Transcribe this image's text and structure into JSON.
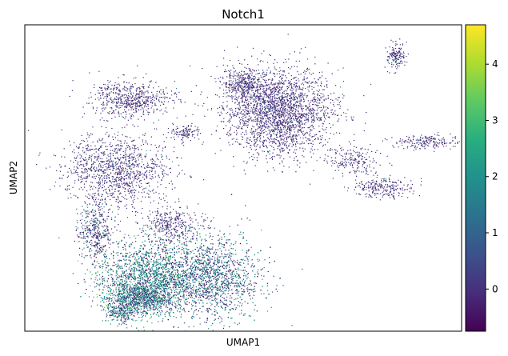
{
  "chart_data": {
    "type": "scatter",
    "title": "Notch1",
    "xlabel": "UMAP1",
    "ylabel": "UMAP2",
    "x_ticks_shown": false,
    "y_ticks_shown": false,
    "grid": false,
    "legend": "none",
    "colormap": "viridis",
    "colorbar": {
      "placement": "right",
      "range": [
        -0.75,
        4.7
      ],
      "ticks": [
        0,
        1,
        2,
        3,
        4
      ],
      "tick_labels": [
        "0",
        "1",
        "2",
        "3",
        "4"
      ]
    },
    "point_color_low": "#440154",
    "point_color_high": "#fde725",
    "clusters": [
      {
        "cx": 0.58,
        "cy": 0.72,
        "sx": 0.06,
        "sy": 0.07,
        "n": 2400,
        "value": 0.0
      },
      {
        "cx": 0.5,
        "cy": 0.81,
        "sx": 0.025,
        "sy": 0.03,
        "n": 350,
        "value": 0.0
      },
      {
        "cx": 0.24,
        "cy": 0.76,
        "sx": 0.045,
        "sy": 0.03,
        "n": 600,
        "value": 0.0
      },
      {
        "cx": 0.85,
        "cy": 0.9,
        "sx": 0.012,
        "sy": 0.02,
        "n": 150,
        "value": 0.0
      },
      {
        "cx": 0.21,
        "cy": 0.53,
        "sx": 0.06,
        "sy": 0.06,
        "n": 1200,
        "value": 0.0
      },
      {
        "cx": 0.33,
        "cy": 0.35,
        "sx": 0.035,
        "sy": 0.03,
        "n": 350,
        "value": 0.0
      },
      {
        "cx": 0.82,
        "cy": 0.47,
        "sx": 0.035,
        "sy": 0.015,
        "n": 250,
        "value": 0.0
      },
      {
        "cx": 0.92,
        "cy": 0.62,
        "sx": 0.04,
        "sy": 0.012,
        "n": 200,
        "value": 0.0
      },
      {
        "cx": 0.75,
        "cy": 0.56,
        "sx": 0.03,
        "sy": 0.025,
        "n": 200,
        "value": 0.0
      },
      {
        "cx": 0.36,
        "cy": 0.65,
        "sx": 0.02,
        "sy": 0.015,
        "n": 120,
        "value": 0.0
      },
      {
        "cx": 0.28,
        "cy": 0.18,
        "sx": 0.06,
        "sy": 0.06,
        "n": 2600,
        "value": 1.9
      },
      {
        "cx": 0.26,
        "cy": 0.11,
        "sx": 0.04,
        "sy": 0.025,
        "n": 900,
        "value": 1.6
      },
      {
        "cx": 0.16,
        "cy": 0.33,
        "sx": 0.02,
        "sy": 0.05,
        "n": 400,
        "value": 0.6
      },
      {
        "cx": 0.42,
        "cy": 0.18,
        "sx": 0.06,
        "sy": 0.07,
        "n": 2400,
        "value": 1.3
      },
      {
        "cx": 0.22,
        "cy": 0.06,
        "sx": 0.02,
        "sy": 0.015,
        "n": 200,
        "value": 1.7
      }
    ]
  }
}
